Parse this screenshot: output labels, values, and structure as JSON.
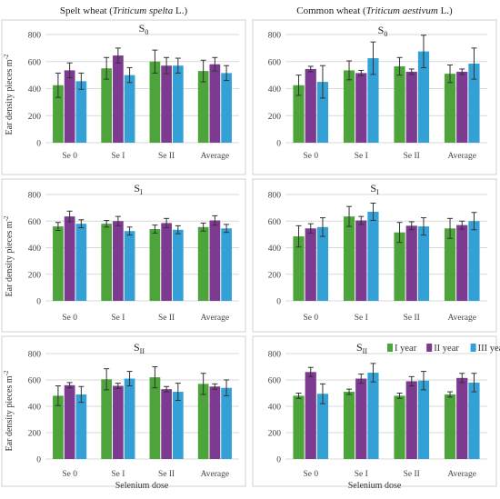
{
  "figure": {
    "column_titles": [
      {
        "prefix": "Spelt wheat (",
        "italic": "Triticum spelta",
        "suffix": " L.)"
      },
      {
        "prefix": "Common wheat (",
        "italic": "Triticum aestivum",
        "suffix": " L.)"
      }
    ],
    "ylabel": "Ear density  pieces m",
    "ylabel_sup": "-2",
    "xlabel": "Selenium dose"
  },
  "colors": {
    "I year": "#4ca43a",
    "II year": "#7d3a91",
    "III year": "#33a1d6"
  },
  "legend": [
    "I year",
    "II year",
    "III year"
  ],
  "chart_data": [
    {
      "type": "bar",
      "panel": "spelt-S0",
      "subtitle": "S",
      "subtitle_sub": "0",
      "categories": [
        "Se 0",
        "Se I",
        "Se II",
        "Average"
      ],
      "ylim": [
        0,
        800
      ],
      "yticks": [
        0,
        200,
        400,
        600,
        800
      ],
      "grid": true,
      "series": [
        {
          "name": "I year",
          "values": [
            425,
            550,
            600,
            530
          ],
          "errors": [
            90,
            80,
            85,
            80
          ]
        },
        {
          "name": "II year",
          "values": [
            535,
            645,
            570,
            580
          ],
          "errors": [
            55,
            55,
            60,
            50
          ]
        },
        {
          "name": "III year",
          "values": [
            455,
            500,
            570,
            515
          ],
          "errors": [
            60,
            55,
            55,
            55
          ]
        }
      ]
    },
    {
      "type": "bar",
      "panel": "common-S0",
      "subtitle": "S",
      "subtitle_sub": "0",
      "categories": [
        "Se 0",
        "Se I",
        "Se II",
        "Average"
      ],
      "ylim": [
        0,
        800
      ],
      "yticks": [
        0,
        200,
        400,
        600,
        800
      ],
      "grid": true,
      "series": [
        {
          "name": "I year",
          "values": [
            425,
            535,
            565,
            510
          ],
          "errors": [
            75,
            70,
            65,
            65
          ]
        },
        {
          "name": "II year",
          "values": [
            545,
            515,
            525,
            525
          ],
          "errors": [
            20,
            20,
            20,
            20
          ]
        },
        {
          "name": "III year",
          "values": [
            450,
            625,
            675,
            585
          ],
          "errors": [
            120,
            120,
            120,
            115
          ]
        }
      ]
    },
    {
      "type": "bar",
      "panel": "spelt-SI",
      "subtitle": "S",
      "subtitle_sub": "I",
      "categories": [
        "Se 0",
        "Se I",
        "Se II",
        "Average"
      ],
      "ylim": [
        0,
        800
      ],
      "yticks": [
        0,
        200,
        400,
        600,
        800
      ],
      "grid": true,
      "series": [
        {
          "name": "I year",
          "values": [
            560,
            580,
            540,
            555
          ],
          "errors": [
            30,
            25,
            30,
            30
          ]
        },
        {
          "name": "II year",
          "values": [
            635,
            600,
            585,
            605
          ],
          "errors": [
            40,
            35,
            35,
            35
          ]
        },
        {
          "name": "III year",
          "values": [
            580,
            525,
            535,
            545
          ],
          "errors": [
            30,
            30,
            30,
            30
          ]
        }
      ]
    },
    {
      "type": "bar",
      "panel": "common-SI",
      "subtitle": "S",
      "subtitle_sub": "I",
      "categories": [
        "Se 0",
        "Se I",
        "Se II",
        "Average"
      ],
      "ylim": [
        0,
        800
      ],
      "yticks": [
        0,
        200,
        400,
        600,
        800
      ],
      "grid": true,
      "series": [
        {
          "name": "I year",
          "values": [
            485,
            635,
            515,
            545
          ],
          "errors": [
            80,
            75,
            75,
            75
          ]
        },
        {
          "name": "II year",
          "values": [
            545,
            605,
            565,
            570
          ],
          "errors": [
            35,
            30,
            30,
            30
          ]
        },
        {
          "name": "III year",
          "values": [
            555,
            670,
            560,
            600
          ],
          "errors": [
            70,
            65,
            65,
            65
          ]
        }
      ]
    },
    {
      "type": "bar",
      "panel": "spelt-SII",
      "subtitle": "S",
      "subtitle_sub": "II",
      "categories": [
        "Se 0",
        "Se I",
        "Se II",
        "Average"
      ],
      "ylim": [
        0,
        800
      ],
      "yticks": [
        0,
        200,
        400,
        600,
        800
      ],
      "grid": true,
      "series": [
        {
          "name": "I year",
          "values": [
            480,
            605,
            620,
            570
          ],
          "errors": [
            75,
            80,
            80,
            80
          ]
        },
        {
          "name": "II year",
          "values": [
            560,
            555,
            530,
            550
          ],
          "errors": [
            20,
            20,
            20,
            20
          ]
        },
        {
          "name": "III year",
          "values": [
            490,
            610,
            510,
            540
          ],
          "errors": [
            60,
            55,
            65,
            60
          ]
        }
      ]
    },
    {
      "type": "bar",
      "panel": "common-SII",
      "subtitle": "S",
      "subtitle_sub": "II",
      "categories": [
        "Se 0",
        "Se I",
        "Se II",
        "Average"
      ],
      "ylim": [
        0,
        800
      ],
      "yticks": [
        0,
        200,
        400,
        600,
        800
      ],
      "grid": true,
      "legend_position": "top-right",
      "series": [
        {
          "name": "I year",
          "values": [
            480,
            510,
            480,
            490
          ],
          "errors": [
            20,
            20,
            20,
            20
          ]
        },
        {
          "name": "II year",
          "values": [
            660,
            610,
            590,
            615
          ],
          "errors": [
            35,
            35,
            35,
            35
          ]
        },
        {
          "name": "III year",
          "values": [
            495,
            655,
            595,
            580
          ],
          "errors": [
            75,
            70,
            70,
            70
          ]
        }
      ]
    }
  ]
}
